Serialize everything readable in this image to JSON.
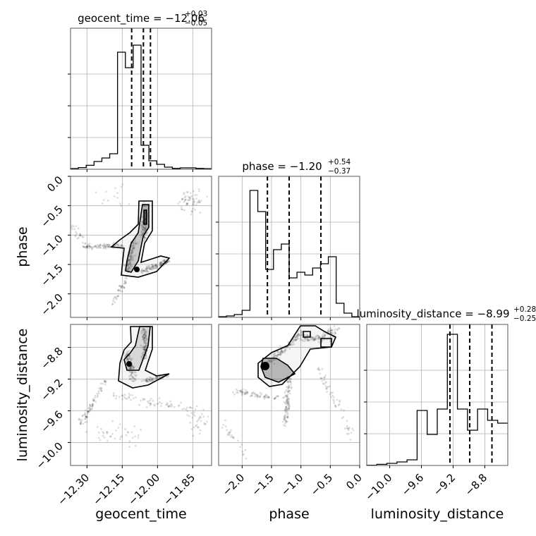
{
  "chart_data": {
    "type": "corner",
    "parameters": [
      {
        "name": "geocent_time",
        "title_base": "geocent_time = −12.06",
        "title_plus": "+0.03",
        "title_minus": "−0.05",
        "median": -12.06,
        "quantiles": [
          -12.11,
          -12.06,
          -12.03
        ],
        "range": [
          -12.37,
          -11.77
        ],
        "ticks": [
          -12.3,
          -12.15,
          -12.0,
          -11.85
        ],
        "tick_labels": [
          "−12.30",
          "−12.15",
          "−12.00",
          "−11.85"
        ],
        "axis_label": "geocent_time",
        "histogram": [
          0.005,
          0.012,
          0.028,
          0.055,
          0.08,
          0.11,
          0.83,
          0.72,
          0.88,
          0.17,
          0.06,
          0.035,
          0.015,
          0.006,
          0.01,
          0.01,
          0.006,
          0.004
        ]
      },
      {
        "name": "phase",
        "title_base": "phase = −1.20",
        "title_plus": "+0.54",
        "title_minus": "−0.37",
        "median": -1.2,
        "quantiles": [
          -1.57,
          -1.2,
          -0.66
        ],
        "range": [
          -2.4,
          0.0
        ],
        "ticks": [
          -2.0,
          -1.5,
          -1.0,
          -0.5,
          0.0
        ],
        "tick_labels": [
          "−2.0",
          "−1.5",
          "−1.0",
          "−0.5",
          "0.0"
        ],
        "axis_label": "phase",
        "histogram": [
          0.005,
          0.01,
          0.02,
          0.05,
          0.9,
          0.75,
          0.34,
          0.48,
          0.52,
          0.28,
          0.32,
          0.3,
          0.35,
          0.38,
          0.43,
          0.1,
          0.03,
          0.005
        ]
      },
      {
        "name": "luminosity_distance",
        "title_base": "luminosity_distance = −8.99",
        "title_plus": "+0.28",
        "title_minus": "−0.25",
        "median": -8.99,
        "quantiles": [
          -9.24,
          -8.99,
          -8.71
        ],
        "range": [
          -10.29,
          -8.51
        ],
        "ticks": [
          -10.0,
          -9.6,
          -9.2,
          -8.8
        ],
        "tick_labels": [
          "−10.0",
          "−9.6",
          "−9.2",
          "−8.8"
        ],
        "axis_label": "luminosity_distance",
        "histogram": [
          0.002,
          0.008,
          0.015,
          0.025,
          0.04,
          0.39,
          0.22,
          0.4,
          0.93,
          0.4,
          0.25,
          0.4,
          0.32,
          0.3
        ]
      }
    ]
  }
}
